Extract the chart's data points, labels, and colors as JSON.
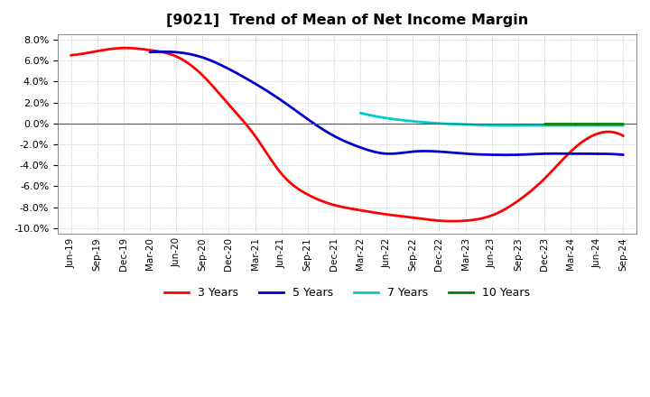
{
  "title": "[9021]  Trend of Mean of Net Income Margin",
  "x_labels": [
    "Jun-19",
    "Sep-19",
    "Dec-19",
    "Mar-20",
    "Jun-20",
    "Sep-20",
    "Dec-20",
    "Mar-21",
    "Jun-21",
    "Sep-21",
    "Dec-21",
    "Mar-22",
    "Jun-22",
    "Sep-22",
    "Dec-22",
    "Mar-23",
    "Jun-23",
    "Sep-23",
    "Dec-23",
    "Mar-24",
    "Jun-24",
    "Sep-24"
  ],
  "ylim": [
    -0.105,
    0.085
  ],
  "yticks": [
    -0.1,
    -0.08,
    -0.06,
    -0.04,
    -0.02,
    0.0,
    0.02,
    0.04,
    0.06,
    0.08
  ],
  "series": {
    "3 Years": {
      "color": "#FF0000",
      "data_x": [
        0,
        1,
        2,
        3,
        4,
        5,
        6,
        7,
        8,
        9,
        10,
        11,
        12,
        13,
        14,
        15,
        16,
        17,
        18,
        19,
        20,
        21
      ],
      "data_y": [
        0.065,
        0.069,
        0.072,
        0.07,
        0.064,
        0.046,
        0.018,
        -0.012,
        -0.048,
        -0.068,
        -0.078,
        -0.083,
        -0.087,
        -0.09,
        -0.093,
        -0.093,
        -0.088,
        -0.074,
        -0.053,
        -0.027,
        -0.01,
        -0.012
      ]
    },
    "5 Years": {
      "color": "#0000CC",
      "data_x": [
        3,
        4,
        5,
        6,
        7,
        8,
        9,
        10,
        11,
        12,
        13,
        14,
        15,
        16,
        17,
        18,
        19,
        20,
        21
      ],
      "data_y": [
        0.068,
        0.068,
        0.063,
        0.052,
        0.038,
        0.022,
        0.004,
        -0.012,
        -0.023,
        -0.029,
        -0.027,
        -0.027,
        -0.029,
        -0.03,
        -0.03,
        -0.029,
        -0.029,
        -0.029,
        -0.03
      ]
    },
    "7 Years": {
      "color": "#00CCCC",
      "data_x": [
        11,
        12,
        13,
        14,
        15,
        16,
        17,
        18,
        19,
        20,
        21
      ],
      "data_y": [
        0.01,
        0.005,
        0.002,
        0.0,
        -0.001,
        -0.002,
        -0.002,
        -0.002,
        -0.002,
        -0.002,
        -0.002
      ]
    },
    "10 Years": {
      "color": "#008000",
      "data_x": [
        18,
        19,
        20,
        21
      ],
      "data_y": [
        -0.0005,
        -0.0005,
        -0.0005,
        -0.0005
      ]
    }
  },
  "background_color": "#FFFFFF",
  "plot_bg_color": "#FFFFFF",
  "grid_color": "#999999",
  "legend_items": [
    "3 Years",
    "5 Years",
    "7 Years",
    "10 Years"
  ]
}
